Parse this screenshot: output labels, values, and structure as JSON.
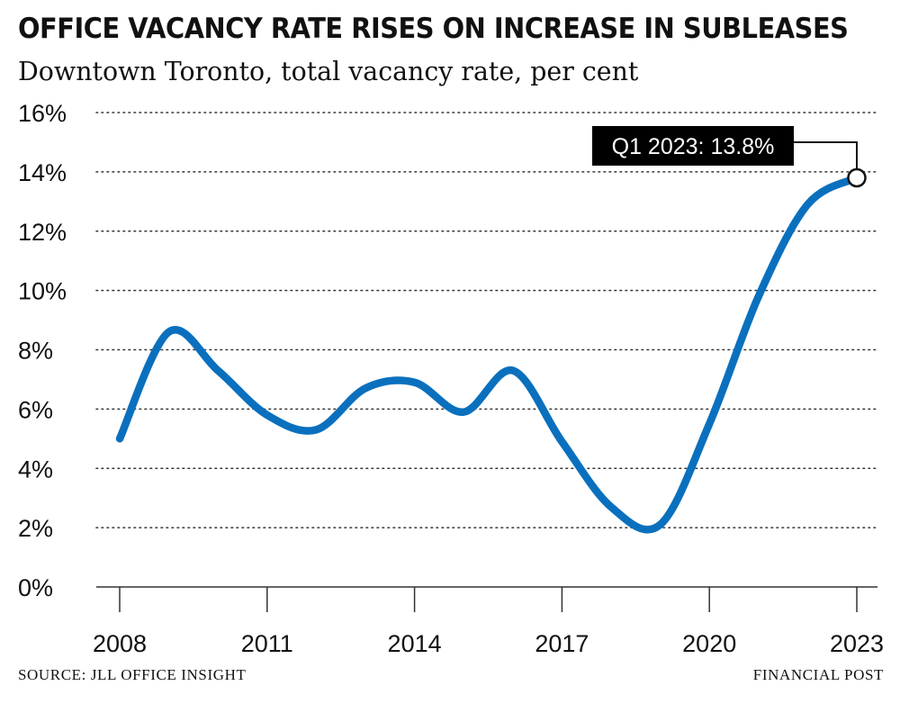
{
  "header": {
    "title": "OFFICE VACANCY RATE RISES ON INCREASE IN SUBLEASES",
    "subtitle": "Downtown Toronto, total vacancy rate, per cent"
  },
  "footer": {
    "source": "SOURCE: JLL OFFICE INSIGHT",
    "brand": "FINANCIAL POST"
  },
  "colors": {
    "line": "#0a70be",
    "grid": "#333333",
    "axis": "#333333",
    "callout_bg": "#000000"
  },
  "chart_data": {
    "type": "line",
    "title": "OFFICE VACANCY RATE RISES ON INCREASE IN SUBLEASES",
    "subtitle": "Downtown Toronto, total vacancy rate, per cent",
    "xlabel": "",
    "ylabel": "",
    "xlim": [
      2008,
      2023
    ],
    "ylim": [
      0,
      16
    ],
    "x_ticks": [
      {
        "value": 2008,
        "label": "2008"
      },
      {
        "value": 2011,
        "label": "2011"
      },
      {
        "value": 2014,
        "label": "2014"
      },
      {
        "value": 2017,
        "label": "2017"
      },
      {
        "value": 2020,
        "label": "2020"
      },
      {
        "value": 2023,
        "label": "2023"
      }
    ],
    "y_ticks": [
      {
        "value": 0,
        "label": "0%"
      },
      {
        "value": 2,
        "label": "2%"
      },
      {
        "value": 4,
        "label": "4%"
      },
      {
        "value": 6,
        "label": "6%"
      },
      {
        "value": 8,
        "label": "8%"
      },
      {
        "value": 10,
        "label": "10%"
      },
      {
        "value": 12,
        "label": "12%"
      },
      {
        "value": 14,
        "label": "14%"
      },
      {
        "value": 16,
        "label": "16%"
      }
    ],
    "grid": true,
    "series": [
      {
        "x": [
          2008,
          2009,
          2010,
          2011,
          2012,
          2013,
          2014,
          2015,
          2016,
          2017,
          2018,
          2019,
          2020,
          2021,
          2022,
          2023
        ],
        "y": [
          5.0,
          8.6,
          7.3,
          5.8,
          5.3,
          6.7,
          6.9,
          5.9,
          7.3,
          4.9,
          2.7,
          2.1,
          5.5,
          9.8,
          12.9,
          13.8
        ]
      }
    ],
    "annotations": [
      {
        "x": 2023,
        "y": 13.8,
        "text": "Q1 2023: 13.8%"
      }
    ]
  }
}
